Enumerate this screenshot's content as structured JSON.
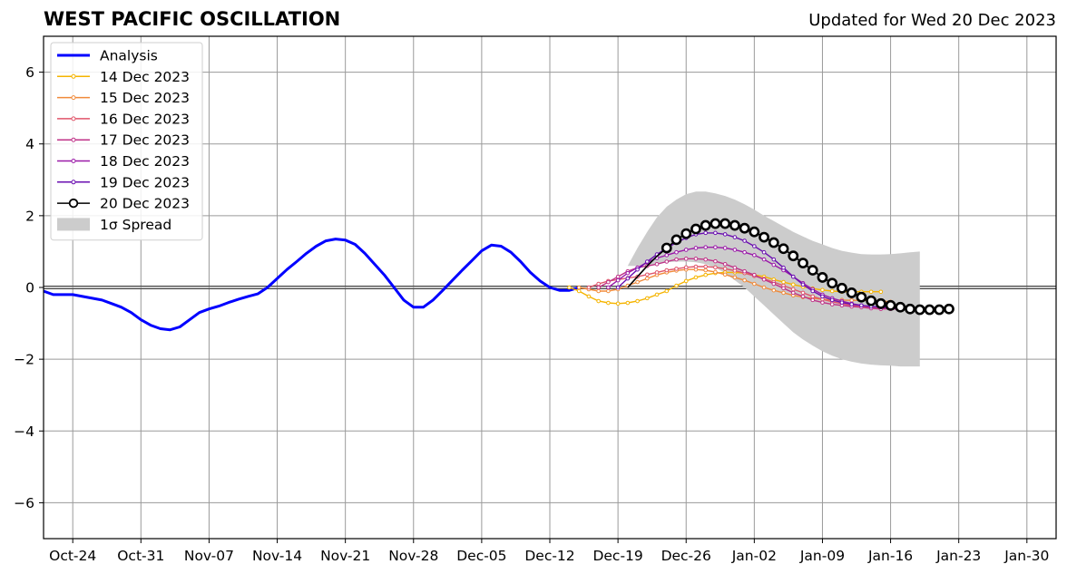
{
  "title": "WEST PACIFIC OSCILLATION",
  "subtitle": "Updated for Wed 20 Dec 2023",
  "chart_data": {
    "type": "line",
    "title": "WEST PACIFIC OSCILLATION",
    "subtitle": "Updated for Wed 20 Dec 2023",
    "xlabel": "",
    "ylabel": "",
    "xlim": [
      "2023-10-21",
      "2024-02-02"
    ],
    "ylim": [
      -7,
      7
    ],
    "yticks": [
      -6,
      -4,
      -2,
      0,
      2,
      4,
      6
    ],
    "yticklabels": [
      "−6",
      "−4",
      "−2",
      "0",
      "2",
      "4",
      "6"
    ],
    "xticks": [
      "2023-10-24",
      "2023-10-31",
      "2023-11-07",
      "2023-11-14",
      "2023-11-21",
      "2023-11-28",
      "2023-12-05",
      "2023-12-12",
      "2023-12-19",
      "2023-12-26",
      "2024-01-02",
      "2024-01-09",
      "2024-01-16",
      "2024-01-23",
      "2024-01-30"
    ],
    "xticklabels": [
      "Oct-24",
      "Oct-31",
      "Nov-07",
      "Nov-14",
      "Nov-21",
      "Nov-28",
      "Dec-05",
      "Dec-12",
      "Dec-19",
      "Dec-26",
      "Jan-02",
      "Jan-09",
      "Jan-16",
      "Jan-23",
      "Jan-30"
    ],
    "grid": true,
    "zero_line": true,
    "legend_position": "upper-left",
    "analysis": {
      "name": "Analysis",
      "color": "#0000ff",
      "start": "2023-10-21",
      "values": [
        -0.1,
        -0.2,
        -0.2,
        -0.2,
        -0.25,
        -0.3,
        -0.35,
        -0.45,
        -0.55,
        -0.7,
        -0.9,
        -1.05,
        -1.15,
        -1.18,
        -1.1,
        -0.9,
        -0.7,
        -0.6,
        -0.52,
        -0.42,
        -0.33,
        -0.25,
        -0.18,
        0.0,
        0.25,
        0.5,
        0.72,
        0.95,
        1.15,
        1.3,
        1.35,
        1.32,
        1.2,
        0.95,
        0.65,
        0.35,
        0.0,
        -0.35,
        -0.55,
        -0.55,
        -0.35,
        -0.08,
        0.2,
        0.48,
        0.75,
        1.02,
        1.18,
        1.15,
        0.98,
        0.72,
        0.42,
        0.18,
        0.0,
        -0.08,
        -0.08,
        0.0
      ]
    },
    "forecasts": [
      {
        "name": "14 Dec 2023",
        "color": "#f5b400",
        "start": "2023-12-14",
        "values": [
          0.0,
          -0.1,
          -0.25,
          -0.38,
          -0.43,
          -0.45,
          -0.43,
          -0.38,
          -0.3,
          -0.2,
          -0.1,
          0.05,
          0.18,
          0.28,
          0.35,
          0.4,
          0.42,
          0.42,
          0.4,
          0.35,
          0.3,
          0.22,
          0.15,
          0.08,
          0.02,
          -0.03,
          -0.07,
          -0.1,
          -0.12,
          -0.12,
          -0.12,
          -0.12,
          -0.12
        ]
      },
      {
        "name": "15 Dec 2023",
        "color": "#f08a3a",
        "start": "2023-12-15",
        "values": [
          0.0,
          -0.05,
          -0.1,
          -0.1,
          -0.05,
          0.05,
          0.15,
          0.25,
          0.35,
          0.42,
          0.47,
          0.5,
          0.5,
          0.48,
          0.43,
          0.36,
          0.28,
          0.2,
          0.1,
          0.0,
          -0.08,
          -0.15,
          -0.22,
          -0.27,
          -0.3,
          -0.33,
          -0.35,
          -0.35,
          -0.36,
          -0.36,
          -0.37,
          -0.38,
          -0.4
        ]
      },
      {
        "name": "16 Dec 2023",
        "color": "#e0556a",
        "start": "2023-12-16",
        "values": [
          0.0,
          0.1,
          0.18,
          0.22,
          0.26,
          0.3,
          0.36,
          0.42,
          0.48,
          0.52,
          0.56,
          0.58,
          0.58,
          0.56,
          0.52,
          0.47,
          0.4,
          0.32,
          0.24,
          0.15,
          0.05,
          -0.05,
          -0.15,
          -0.25,
          -0.33,
          -0.4,
          -0.45,
          -0.5,
          -0.53,
          -0.55,
          -0.56,
          -0.57,
          -0.6
        ]
      },
      {
        "name": "17 Dec 2023",
        "color": "#c03388",
        "start": "2023-12-17",
        "values": [
          0.0,
          0.15,
          0.3,
          0.45,
          0.55,
          0.6,
          0.65,
          0.72,
          0.78,
          0.8,
          0.8,
          0.78,
          0.73,
          0.65,
          0.55,
          0.45,
          0.35,
          0.22,
          0.1,
          -0.02,
          -0.15,
          -0.25,
          -0.35,
          -0.42,
          -0.47,
          -0.5,
          -0.53,
          -0.55,
          -0.58,
          -0.6,
          -0.6,
          -0.61,
          -0.62
        ]
      },
      {
        "name": "18 Dec 2023",
        "color": "#9a1aa8",
        "start": "2023-12-18",
        "values": [
          0.0,
          0.2,
          0.4,
          0.55,
          0.7,
          0.82,
          0.9,
          0.98,
          1.05,
          1.1,
          1.12,
          1.12,
          1.1,
          1.05,
          0.98,
          0.9,
          0.78,
          0.63,
          0.48,
          0.3,
          0.12,
          -0.05,
          -0.2,
          -0.3,
          -0.38,
          -0.45,
          -0.5,
          -0.53,
          -0.55,
          -0.58,
          -0.6,
          -0.6,
          -0.62
        ]
      },
      {
        "name": "19 Dec 2023",
        "color": "#6a0fb0",
        "start": "2023-12-19",
        "values": [
          0.0,
          0.25,
          0.5,
          0.72,
          0.92,
          1.1,
          1.25,
          1.38,
          1.48,
          1.52,
          1.52,
          1.48,
          1.4,
          1.3,
          1.15,
          0.98,
          0.78,
          0.55,
          0.3,
          0.08,
          -0.1,
          -0.25,
          -0.35,
          -0.42,
          -0.47,
          -0.5,
          -0.53,
          -0.55,
          -0.57,
          -0.59,
          -0.6,
          -0.6,
          -0.6
        ]
      },
      {
        "name": "20 Dec 2023",
        "color": "#000000",
        "marker": "open-circle",
        "start": "2023-12-20",
        "values": [
          0.0,
          0.3,
          0.6,
          0.87,
          1.1,
          1.33,
          1.5,
          1.63,
          1.73,
          1.78,
          1.78,
          1.73,
          1.65,
          1.55,
          1.4,
          1.25,
          1.08,
          0.88,
          0.68,
          0.48,
          0.28,
          0.12,
          -0.02,
          -0.15,
          -0.27,
          -0.37,
          -0.45,
          -0.5,
          -0.55,
          -0.6,
          -0.62,
          -0.62,
          -0.62,
          -0.6
        ]
      }
    ],
    "spread": {
      "name": "1σ Spread",
      "color": "#cccccc",
      "start": "2023-12-20",
      "upper": [
        0.6,
        1.1,
        1.55,
        1.95,
        2.25,
        2.45,
        2.6,
        2.67,
        2.67,
        2.62,
        2.55,
        2.45,
        2.32,
        2.17,
        2.0,
        1.85,
        1.7,
        1.55,
        1.42,
        1.3,
        1.2,
        1.1,
        1.02,
        0.97,
        0.93,
        0.92,
        0.92,
        0.93,
        0.95,
        0.98,
        1.0
      ],
      "lower": [
        0.6,
        0.6,
        0.62,
        0.65,
        0.7,
        0.72,
        0.72,
        0.7,
        0.65,
        0.55,
        0.4,
        0.2,
        0.0,
        -0.25,
        -0.5,
        -0.75,
        -1.0,
        -1.25,
        -1.45,
        -1.62,
        -1.78,
        -1.9,
        -2.0,
        -2.07,
        -2.12,
        -2.15,
        -2.17,
        -2.18,
        -2.2,
        -2.2,
        -2.2
      ]
    }
  }
}
